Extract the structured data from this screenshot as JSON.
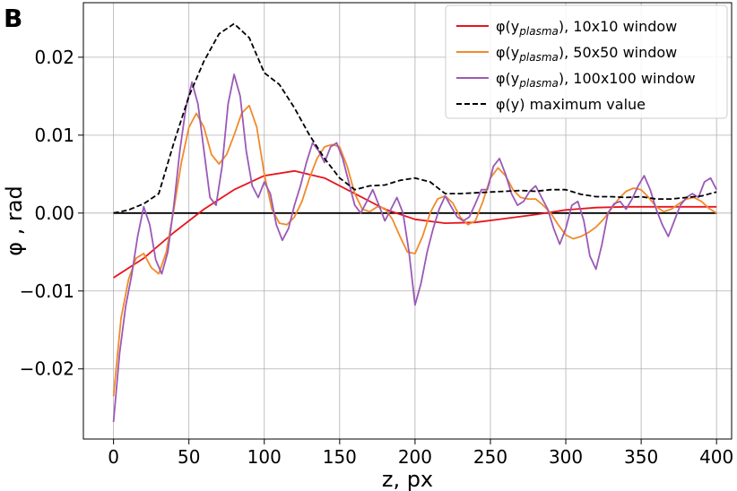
{
  "panel_label": "B",
  "chart_data": {
    "type": "line",
    "xlabel": "z, px",
    "ylabel": "φ  , rad",
    "xlim": [
      -20,
      410
    ],
    "ylim": [
      -0.029,
      0.027
    ],
    "x_ticks": [
      0,
      50,
      100,
      150,
      200,
      250,
      300,
      350,
      400
    ],
    "x_tick_labels": [
      "0",
      "50",
      "100",
      "150",
      "200",
      "250",
      "300",
      "350",
      "400"
    ],
    "y_ticks": [
      -0.02,
      -0.01,
      0.0,
      0.01,
      0.02
    ],
    "y_tick_labels": [
      "−0.02",
      "−0.01",
      "0.00",
      "0.01",
      "0.02"
    ],
    "grid": true,
    "legend_position": "top-right",
    "legend": [
      {
        "prefix": "φ(y",
        "sub": "plasma",
        "suffix": "), 10x10 window"
      },
      {
        "prefix": "φ(y",
        "sub": "plasma",
        "suffix": "), 50x50 window"
      },
      {
        "prefix": "φ(y",
        "sub": "plasma",
        "suffix": "), 100x100 window"
      },
      {
        "prefix": "φ(y) maximum value",
        "sub": "",
        "suffix": ""
      }
    ],
    "series": [
      {
        "color": "#e8141c",
        "dash": "solid",
        "x": [
          0,
          20,
          40,
          60,
          80,
          100,
          120,
          140,
          160,
          180,
          200,
          220,
          240,
          260,
          280,
          300,
          320,
          340,
          360,
          380,
          400
        ],
        "values": [
          -0.0083,
          -0.0058,
          -0.0025,
          0.0005,
          0.003,
          0.0048,
          0.0054,
          0.0045,
          0.0025,
          0.0005,
          -0.0008,
          -0.0013,
          -0.0012,
          -0.0007,
          -0.0002,
          0.0004,
          0.0007,
          0.0008,
          0.0008,
          0.0008,
          0.0008
        ]
      },
      {
        "color": "#f18a2b",
        "dash": "solid",
        "x": [
          0,
          5,
          10,
          15,
          20,
          25,
          30,
          35,
          40,
          45,
          50,
          55,
          60,
          65,
          70,
          75,
          80,
          85,
          90,
          95,
          100,
          105,
          110,
          115,
          120,
          125,
          130,
          135,
          140,
          145,
          150,
          155,
          160,
          165,
          170,
          175,
          180,
          185,
          190,
          195,
          200,
          205,
          210,
          215,
          220,
          225,
          230,
          235,
          240,
          245,
          250,
          255,
          260,
          265,
          270,
          275,
          280,
          285,
          290,
          295,
          300,
          305,
          310,
          315,
          320,
          325,
          330,
          335,
          340,
          345,
          350,
          355,
          360,
          365,
          370,
          375,
          380,
          385,
          390,
          395,
          400
        ],
        "values": [
          -0.0235,
          -0.0135,
          -0.0085,
          -0.0058,
          -0.0052,
          -0.007,
          -0.0078,
          -0.005,
          0.0005,
          0.0065,
          0.011,
          0.0128,
          0.011,
          0.0075,
          0.0063,
          0.0075,
          0.01,
          0.0128,
          0.0138,
          0.011,
          0.005,
          0.0005,
          -0.0013,
          -0.0015,
          -0.0005,
          0.0015,
          0.0045,
          0.007,
          0.0085,
          0.0088,
          0.0085,
          0.006,
          0.0025,
          0.0005,
          0.0002,
          0.0008,
          0.0006,
          -0.0008,
          -0.003,
          -0.005,
          -0.0052,
          -0.003,
          0.0,
          0.0018,
          0.0022,
          0.0013,
          -0.0005,
          -0.0015,
          -0.001,
          0.0015,
          0.0045,
          0.0058,
          0.0048,
          0.003,
          0.002,
          0.0018,
          0.0018,
          0.001,
          0.0,
          -0.0015,
          -0.0028,
          -0.0033,
          -0.003,
          -0.0025,
          -0.0018,
          -0.0008,
          0.0005,
          0.0018,
          0.0028,
          0.0032,
          0.003,
          0.002,
          0.0008,
          0.0002,
          0.0005,
          0.0012,
          0.0018,
          0.002,
          0.0015,
          0.0006,
          0.0
        ]
      },
      {
        "color": "#9b59b6",
        "dash": "solid",
        "x": [
          0,
          4,
          8,
          12,
          16,
          20,
          24,
          28,
          32,
          36,
          40,
          44,
          48,
          52,
          56,
          60,
          64,
          68,
          72,
          76,
          80,
          84,
          88,
          92,
          96,
          100,
          104,
          108,
          112,
          116,
          120,
          124,
          128,
          132,
          136,
          140,
          144,
          148,
          152,
          156,
          160,
          164,
          168,
          172,
          176,
          180,
          184,
          188,
          192,
          196,
          200,
          204,
          208,
          212,
          216,
          220,
          224,
          228,
          232,
          236,
          240,
          244,
          248,
          252,
          256,
          260,
          264,
          268,
          272,
          276,
          280,
          284,
          288,
          292,
          296,
          300,
          304,
          308,
          312,
          316,
          320,
          324,
          328,
          332,
          336,
          340,
          344,
          348,
          352,
          356,
          360,
          364,
          368,
          372,
          376,
          380,
          384,
          388,
          392,
          396,
          400
        ],
        "values": [
          -0.0268,
          -0.018,
          -0.012,
          -0.008,
          -0.003,
          0.0008,
          -0.0015,
          -0.006,
          -0.0078,
          -0.005,
          0.001,
          0.008,
          0.0135,
          0.0168,
          0.014,
          0.008,
          0.002,
          0.001,
          0.006,
          0.014,
          0.0178,
          0.015,
          0.008,
          0.0035,
          0.002,
          0.004,
          0.0025,
          -0.0015,
          -0.0035,
          -0.002,
          0.001,
          0.0035,
          0.0065,
          0.009,
          0.008,
          0.0065,
          0.0085,
          0.009,
          0.007,
          0.004,
          0.001,
          0.0,
          0.0015,
          0.003,
          0.001,
          -0.001,
          0.0005,
          0.002,
          0.0,
          -0.005,
          -0.0118,
          -0.009,
          -0.005,
          -0.002,
          0.0005,
          0.0022,
          0.0008,
          -0.0005,
          -0.001,
          -0.0005,
          0.0012,
          0.003,
          0.003,
          0.006,
          0.007,
          0.005,
          0.0025,
          0.001,
          0.0015,
          0.0028,
          0.0035,
          0.002,
          0.0005,
          -0.002,
          -0.004,
          -0.002,
          0.001,
          0.0015,
          -0.001,
          -0.0055,
          -0.0072,
          -0.004,
          0.0,
          0.0012,
          0.0015,
          0.0005,
          0.0018,
          0.0035,
          0.0048,
          0.003,
          0.0005,
          -0.0015,
          -0.003,
          -0.001,
          0.001,
          0.002,
          0.0025,
          0.002,
          0.004,
          0.0045,
          0.003
        ]
      },
      {
        "color": "#000000",
        "dash": "dashed",
        "x": [
          0,
          10,
          20,
          30,
          40,
          50,
          60,
          70,
          80,
          90,
          100,
          110,
          120,
          130,
          140,
          150,
          160,
          170,
          180,
          190,
          200,
          210,
          220,
          230,
          240,
          250,
          260,
          270,
          280,
          290,
          300,
          310,
          320,
          330,
          340,
          350,
          360,
          370,
          380,
          390,
          400
        ],
        "values": [
          0.0,
          0.0004,
          0.0012,
          0.0025,
          0.009,
          0.015,
          0.0195,
          0.023,
          0.0243,
          0.0225,
          0.018,
          0.0165,
          0.0135,
          0.01,
          0.007,
          0.0045,
          0.003,
          0.0035,
          0.0036,
          0.0042,
          0.0045,
          0.004,
          0.0025,
          0.0025,
          0.0026,
          0.0027,
          0.0028,
          0.0029,
          0.0028,
          0.003,
          0.003,
          0.0024,
          0.0021,
          0.0021,
          0.002,
          0.0021,
          0.0018,
          0.0018,
          0.002,
          0.0022,
          0.0027
        ]
      },
      {
        "color": "#000000",
        "dash": "solid",
        "x": [
          0,
          400
        ],
        "values": [
          0.0,
          0.0
        ]
      }
    ]
  }
}
